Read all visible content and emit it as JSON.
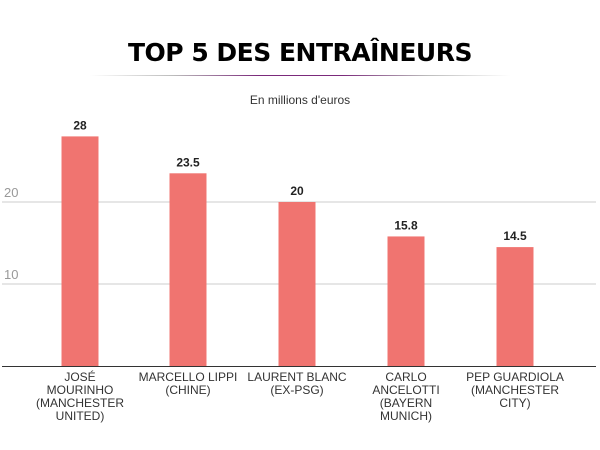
{
  "chart_data": {
    "type": "bar",
    "title": "TOP 5 DES ENTRAÎNEURS",
    "subtitle": "En millions d'euros",
    "categories": [
      "JOSÉ MOURINHO (MANCHESTER UNITED)",
      "MARCELLO LIPPI (CHINE)",
      "LAURENT BLANC (EX-PSG)",
      "CARLO ANCELOTTI (BAYERN MUNICH)",
      "PEP GUARDIOLA (MANCHESTER CITY)"
    ],
    "values": [
      28,
      23.5,
      20,
      15.8,
      14.5
    ],
    "value_labels": [
      "28",
      "23.5",
      "20",
      "15.8",
      "14.5"
    ],
    "yticks": [
      "10",
      "20"
    ],
    "ytick_values": [
      10,
      20
    ],
    "xlabel": "",
    "ylabel": "",
    "ylim": [
      0,
      30
    ],
    "grid": true,
    "bar_color": "#f07470"
  }
}
